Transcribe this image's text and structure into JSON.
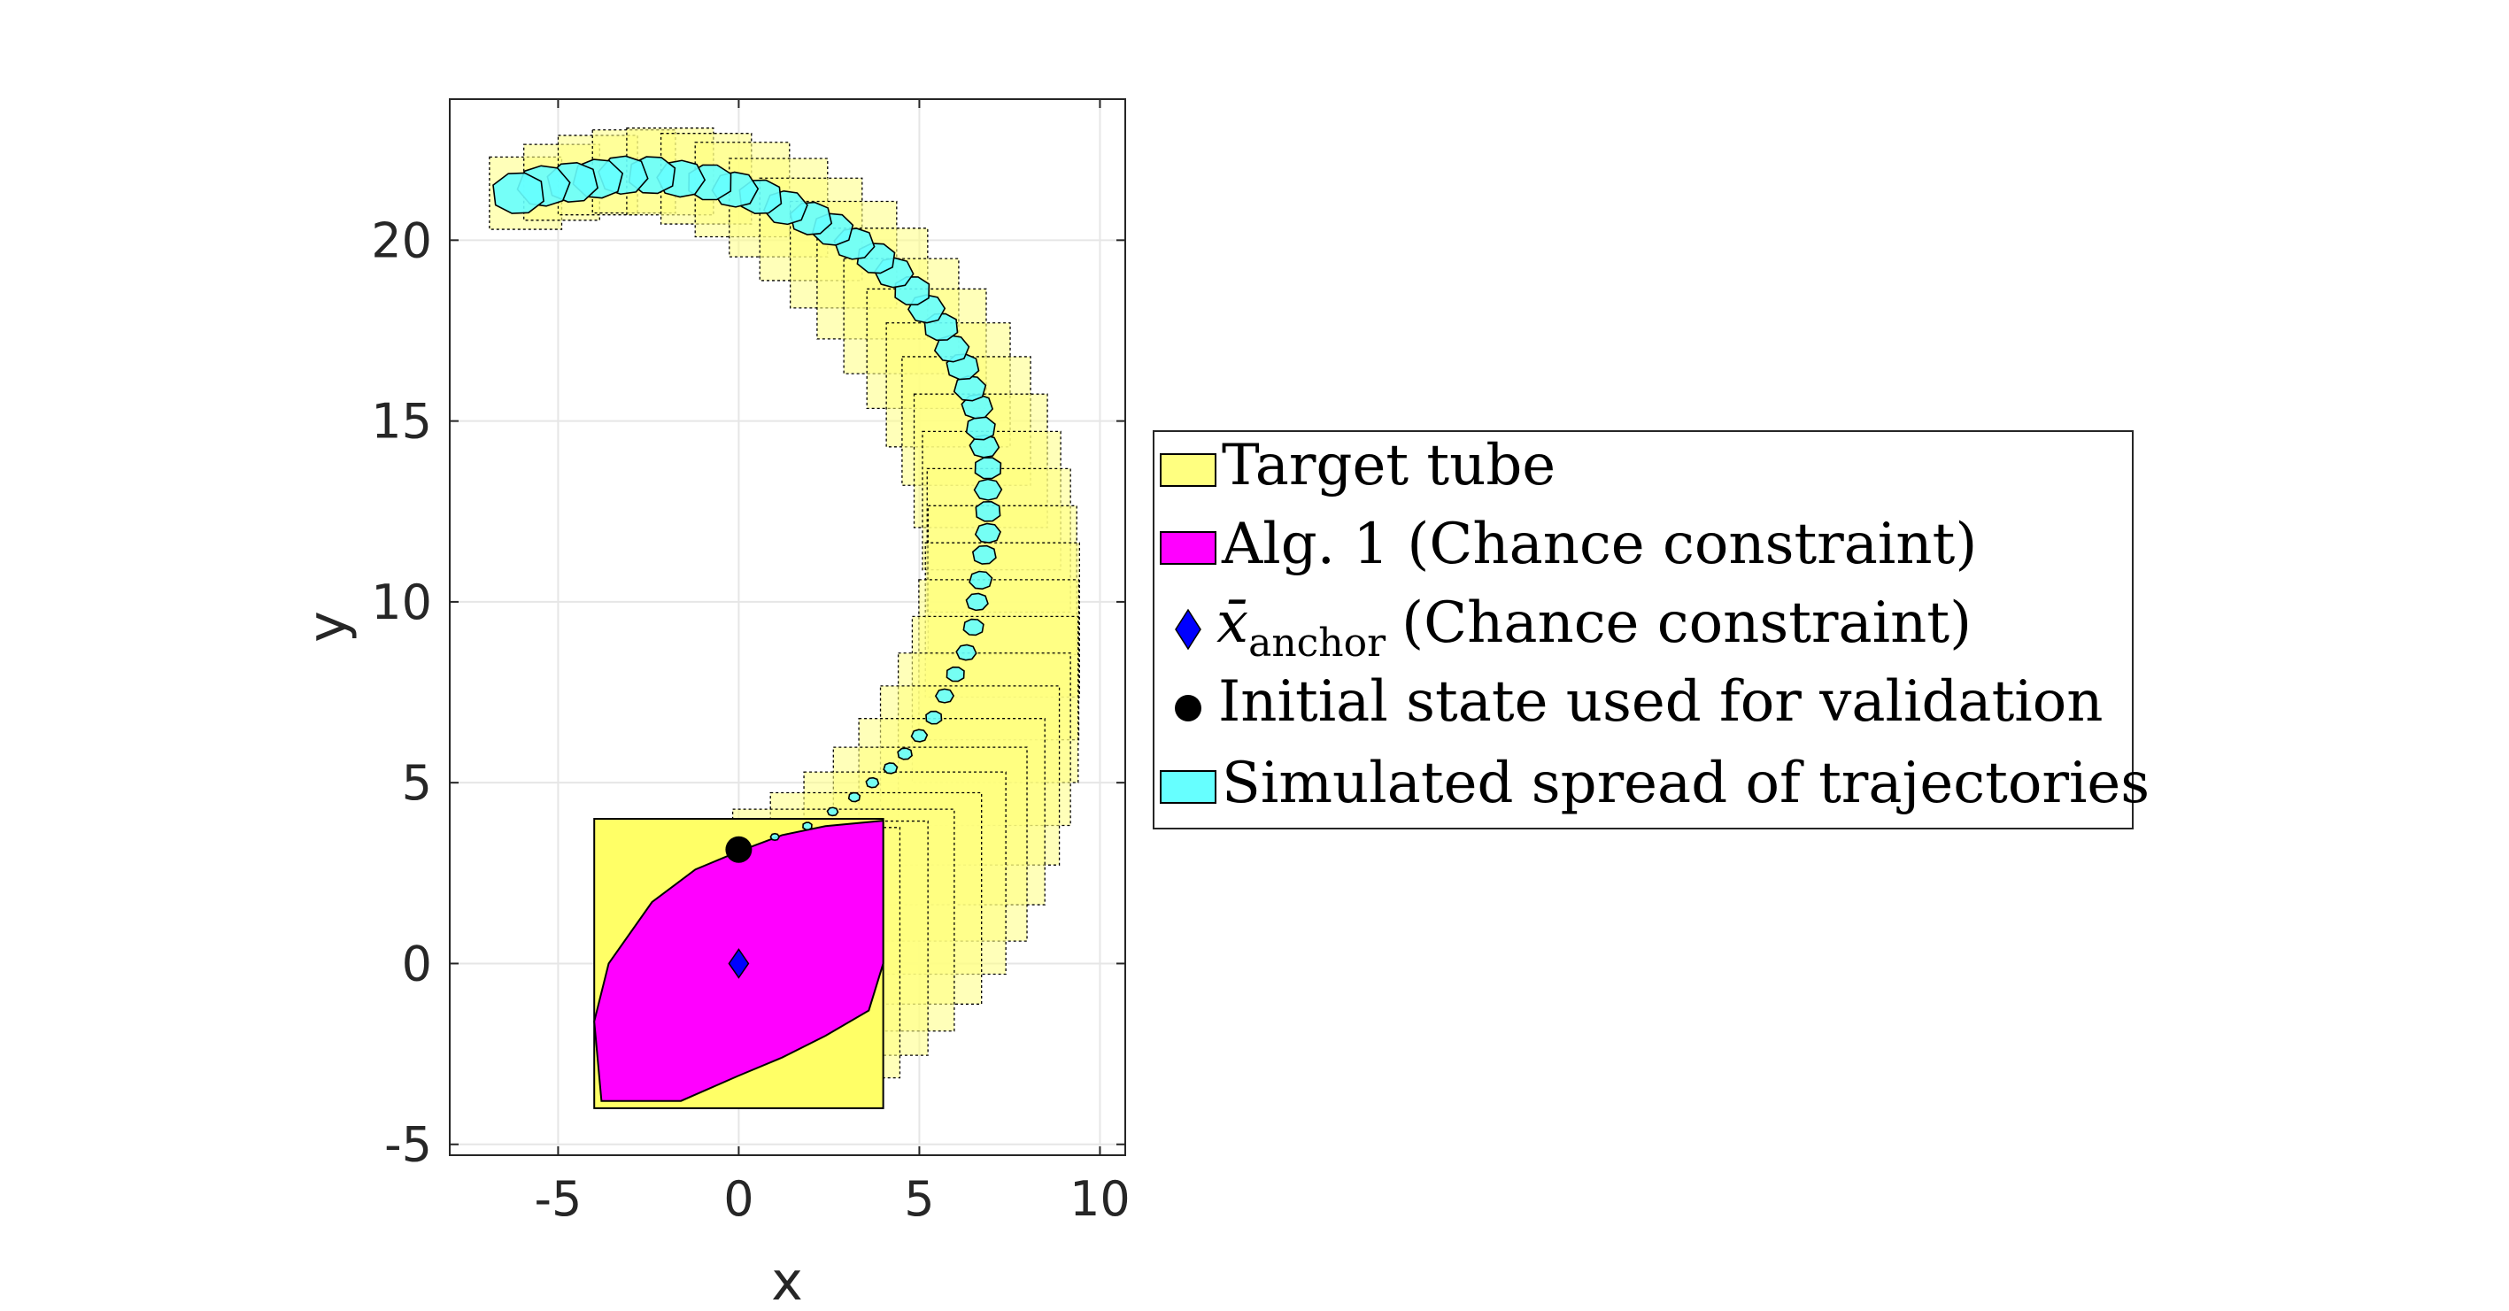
{
  "chart_data": {
    "type": "scatter",
    "xlabel": "x",
    "ylabel": "y",
    "xlim": [
      -8,
      10.7
    ],
    "ylim": [
      -5.3,
      23.9
    ],
    "xticks": [
      -5,
      0,
      5,
      10
    ],
    "xtick_labels": [
      "-5",
      "0",
      "5",
      "10"
    ],
    "yticks": [
      -5,
      0,
      5,
      10,
      15,
      20
    ],
    "ytick_labels": [
      "-5",
      "0",
      "5",
      "10",
      "15",
      "20"
    ],
    "grid": true,
    "legend_position": "east-outside",
    "legend": [
      {
        "label": "Target tube",
        "marker": "patch",
        "color": "#ffff80"
      },
      {
        "label": "Alg. 1 (Chance constraint)",
        "marker": "patch",
        "color": "#ff00ff"
      },
      {
        "label": "(Chance constraint)",
        "symbol": "x̄",
        "subscript": "anchor",
        "marker": "diamond",
        "color": "#0000ff"
      },
      {
        "label": "Initial state used for validation",
        "marker": "circle",
        "color": "#000000"
      },
      {
        "label": "Simulated spread of trajectories",
        "marker": "patch",
        "color": "#66ffff"
      }
    ],
    "target_tube": {
      "initial_box": {
        "x": [
          -4,
          4
        ],
        "y": [
          -4,
          4
        ]
      },
      "center_path": [
        [
          0,
          0
        ],
        [
          1.0,
          0.3
        ],
        [
          2.0,
          0.7
        ],
        [
          2.9,
          1.2
        ],
        [
          3.8,
          1.8
        ],
        [
          4.6,
          2.5
        ],
        [
          5.3,
          3.3
        ],
        [
          5.9,
          4.2
        ],
        [
          6.4,
          5.2
        ],
        [
          6.8,
          6.2
        ],
        [
          7.1,
          7.3
        ],
        [
          7.2,
          8.4
        ],
        [
          7.3,
          9.5
        ],
        [
          7.3,
          10.6
        ],
        [
          7.2,
          11.7
        ],
        [
          7.0,
          12.8
        ],
        [
          6.7,
          13.9
        ],
        [
          6.3,
          15.0
        ],
        [
          5.8,
          16.0
        ],
        [
          5.2,
          17.0
        ],
        [
          4.5,
          17.9
        ],
        [
          3.7,
          18.8
        ],
        [
          2.9,
          19.6
        ],
        [
          2.0,
          20.3
        ],
        [
          1.1,
          20.9
        ],
        [
          0.1,
          21.4
        ],
        [
          -0.9,
          21.7
        ],
        [
          -1.9,
          21.9
        ],
        [
          -2.9,
          21.9
        ],
        [
          -3.9,
          21.8
        ],
        [
          -4.9,
          21.6
        ],
        [
          -5.9,
          21.3
        ]
      ],
      "half_width_start": 4,
      "half_width_end": 1
    },
    "alg1_polygon": [
      [
        0,
        3.1
      ],
      [
        -1.2,
        2.6
      ],
      [
        -2.4,
        1.7
      ],
      [
        -3.6,
        0
      ],
      [
        -4,
        -1.6
      ],
      [
        -3.8,
        -3.8
      ],
      [
        -1.6,
        -3.8
      ],
      [
        0,
        -3.1
      ],
      [
        1.2,
        -2.6
      ],
      [
        2.4,
        -2.0
      ],
      [
        3.6,
        -1.3
      ],
      [
        4.0,
        0
      ],
      [
        4.0,
        3.95
      ],
      [
        2.4,
        3.8
      ],
      [
        1.2,
        3.55
      ]
    ],
    "x_anchor": {
      "x": 0,
      "y": 0
    },
    "initial_state": {
      "x": 0,
      "y": 3.15
    },
    "trajectory_spread": {
      "points": [
        [
          1.0,
          3.5
        ],
        [
          1.9,
          3.8
        ],
        [
          2.6,
          4.2
        ],
        [
          3.2,
          4.6
        ],
        [
          3.7,
          5.0
        ],
        [
          4.2,
          5.4
        ],
        [
          4.6,
          5.8
        ],
        [
          5.0,
          6.3
        ],
        [
          5.4,
          6.8
        ],
        [
          5.7,
          7.4
        ],
        [
          6.0,
          8.0
        ],
        [
          6.3,
          8.6
        ],
        [
          6.5,
          9.3
        ],
        [
          6.6,
          10.0
        ],
        [
          6.7,
          10.6
        ],
        [
          6.8,
          11.3
        ],
        [
          6.9,
          11.9
        ],
        [
          6.9,
          12.5
        ],
        [
          6.9,
          13.1
        ],
        [
          6.9,
          13.7
        ],
        [
          6.8,
          14.3
        ],
        [
          6.7,
          14.8
        ],
        [
          6.6,
          15.4
        ],
        [
          6.4,
          15.9
        ],
        [
          6.2,
          16.5
        ],
        [
          5.9,
          17.0
        ],
        [
          5.6,
          17.6
        ],
        [
          5.2,
          18.1
        ],
        [
          4.8,
          18.6
        ],
        [
          4.3,
          19.1
        ],
        [
          3.8,
          19.5
        ],
        [
          3.2,
          19.9
        ],
        [
          2.6,
          20.3
        ],
        [
          2.0,
          20.6
        ],
        [
          1.3,
          20.9
        ],
        [
          0.6,
          21.2
        ],
        [
          -0.1,
          21.4
        ],
        [
          -0.8,
          21.6
        ],
        [
          -1.6,
          21.7
        ],
        [
          -2.4,
          21.8
        ],
        [
          -3.2,
          21.8
        ],
        [
          -3.9,
          21.7
        ],
        [
          -4.6,
          21.6
        ],
        [
          -5.4,
          21.5
        ],
        [
          -6.1,
          21.3
        ]
      ],
      "radius_start": 0.12,
      "radius_end": 0.75
    }
  }
}
